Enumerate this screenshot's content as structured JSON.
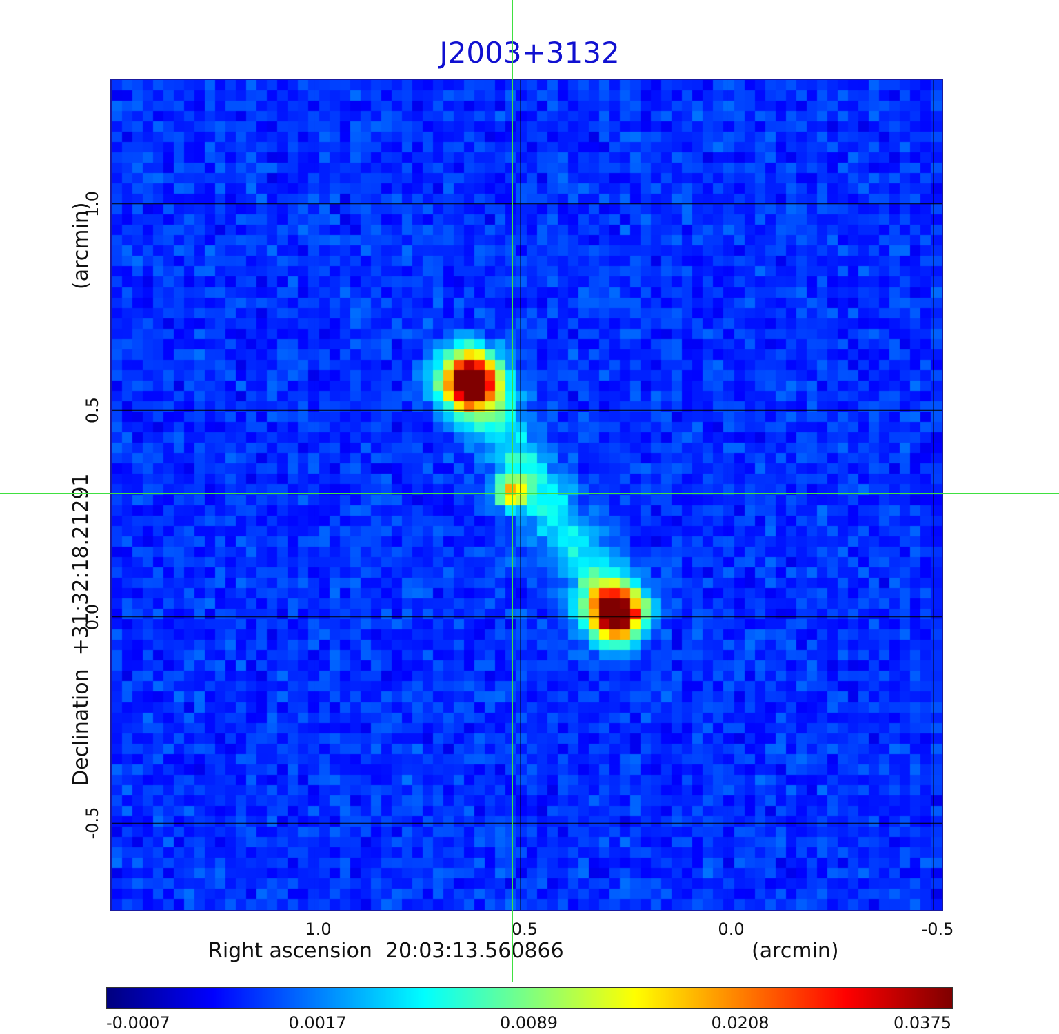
{
  "chart_data": {
    "type": "heatmap",
    "title": "J2003+3132",
    "xlabel": "Right ascension  20:03:13.560866",
    "xlabel_unit": "(arcmin)",
    "ylabel": "Declination  +31:32:18.21291",
    "ylabel_unit": "(arcmin)",
    "x_axis": {
      "lim": [
        1.49,
        -0.52
      ],
      "ticks": [
        1.0,
        0.5,
        0.0,
        -0.5
      ],
      "tick_labels": [
        "1.0",
        "0.5",
        "0.0",
        "-0.5"
      ]
    },
    "y_axis": {
      "lim": [
        -0.71,
        1.3
      ],
      "ticks": [
        -0.5,
        0.0,
        0.5,
        1.0
      ],
      "tick_labels": [
        "-0.5",
        "0.0",
        "0.5",
        "1.0"
      ]
    },
    "grid": true,
    "crosshair": {
      "x": 0.52,
      "y": 0.3,
      "color": "#40e040"
    },
    "colormap": "jet",
    "colorbar": {
      "placement": "bottom",
      "tick_labels": [
        "-0.0007",
        "0.0017",
        "0.0089",
        "0.0208",
        "0.0375"
      ],
      "tick_fractions": [
        0.0,
        0.25,
        0.5,
        0.75,
        1.0
      ]
    },
    "sources": [
      {
        "x": 0.62,
        "y": 0.57,
        "peak": 0.0375,
        "label": "northern lobe hotspot"
      },
      {
        "x": 0.52,
        "y": 0.3,
        "peak": 0.0089,
        "label": "core"
      },
      {
        "x": 0.27,
        "y": 0.01,
        "peak": 0.0375,
        "label": "southern lobe hotspot"
      }
    ],
    "colors": {
      "title": "#1010d0",
      "frame": "#1a1aa0",
      "grid": "#000000",
      "crosshair": "#40e040"
    }
  }
}
